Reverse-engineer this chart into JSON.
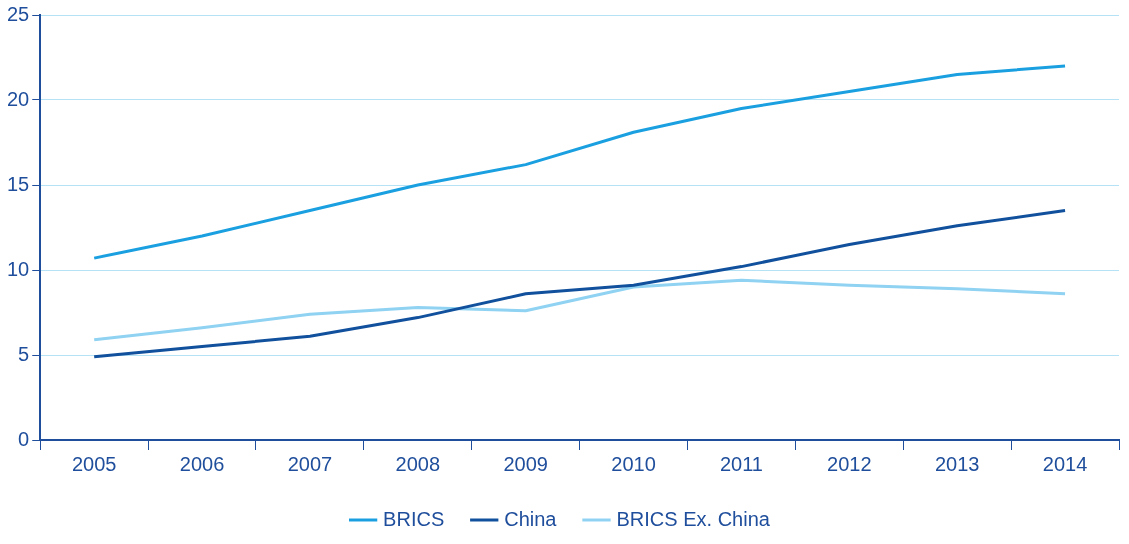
{
  "chart_data": {
    "type": "line",
    "categories": [
      "2005",
      "2006",
      "2007",
      "2008",
      "2009",
      "2010",
      "2011",
      "2012",
      "2013",
      "2014"
    ],
    "series": [
      {
        "name": "BRICS",
        "color": "#1aa0e0",
        "values": [
          10.7,
          12.0,
          13.5,
          15.0,
          16.2,
          18.1,
          19.5,
          20.5,
          21.5,
          22.0
        ]
      },
      {
        "name": "China",
        "color": "#11509c",
        "values": [
          4.9,
          5.5,
          6.1,
          7.2,
          8.6,
          9.1,
          10.2,
          11.5,
          12.6,
          13.5
        ]
      },
      {
        "name": "BRICS Ex. China",
        "color": "#8fd2f2",
        "values": [
          5.9,
          6.6,
          7.4,
          7.8,
          7.6,
          9.0,
          9.4,
          9.1,
          8.9,
          8.6
        ]
      }
    ],
    "ylim": [
      0,
      25
    ],
    "yticks": [
      0,
      5,
      10,
      15,
      20,
      25
    ],
    "grid": "y",
    "legend": "bottom",
    "marker": "none",
    "line_style": "solid"
  }
}
